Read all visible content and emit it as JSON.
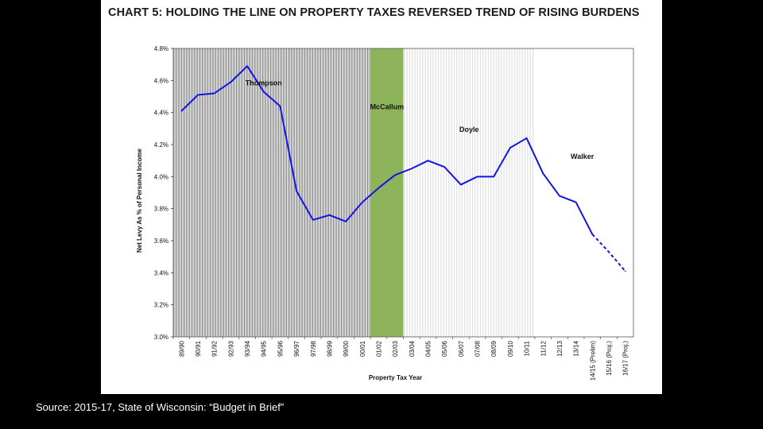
{
  "slide": {
    "title": "CHART 5:  HOLDING THE LINE ON PROPERTY TAXES REVERSED TREND OF RISING BURDENS",
    "source": "Source: 2015-17, State of Wisconsin: “Budget in Brief”",
    "background_color": "#000000",
    "panel_color": "#ffffff"
  },
  "chart_data": {
    "type": "line",
    "title": "CHART 5:  HOLDING THE LINE ON PROPERTY TAXES REVERSED TREND OF RISING BURDENS",
    "xlabel": "Property Tax Year",
    "ylabel": "Net Levy As % of Personal Income",
    "ylim": [
      3.0,
      4.8
    ],
    "yticks": [
      "3.0%",
      "3.2%",
      "3.4%",
      "3.6%",
      "3.8%",
      "4.0%",
      "4.2%",
      "4.4%",
      "4.6%",
      "4.8%"
    ],
    "categories": [
      "89/90",
      "90/91",
      "91/92",
      "92/93",
      "93/94",
      "94/95",
      "95/96",
      "96/97",
      "97/98",
      "98/99",
      "99/00",
      "00/01",
      "01/02",
      "02/03",
      "03/04",
      "04/05",
      "05/06",
      "06/07",
      "07/08",
      "08/09",
      "09/10",
      "10/11",
      "11/12",
      "12/13",
      "13/14",
      "14/15 (Prelim)",
      "15/16 (Proj.)",
      "16/17 (Proj.)"
    ],
    "series": [
      {
        "name": "",
        "color": "#1414e6",
        "values": [
          4.41,
          4.51,
          4.52,
          4.59,
          4.69,
          4.53,
          4.44,
          3.91,
          3.73,
          3.76,
          3.72,
          3.84,
          3.93,
          4.01,
          4.05,
          4.1,
          4.06,
          3.95,
          4.0,
          4.0,
          4.18,
          4.24,
          4.02,
          3.88,
          3.84,
          3.64,
          3.53,
          3.41
        ],
        "projected_from_index": 25
      }
    ],
    "eras": [
      {
        "label": "Thompson",
        "start": "89/90",
        "end": "00/01",
        "fill": "vertical-stripes-gray"
      },
      {
        "label": "McCallum",
        "start": "01/02",
        "end": "02/03",
        "fill": "#8db45a"
      },
      {
        "label": "Doyle",
        "start": "03/04",
        "end": "10/11",
        "fill": "vertical-stripes-light"
      },
      {
        "label": "Walker",
        "start": "11/12",
        "end": "16/17 (Proj.)",
        "fill": "#ffffff"
      }
    ],
    "grid": false,
    "legend": "none"
  }
}
